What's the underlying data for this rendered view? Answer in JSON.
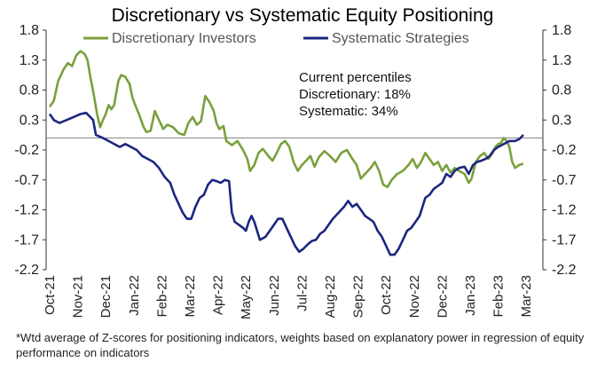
{
  "chart_data": {
    "type": "line",
    "title": "Discretionary  vs Systematic Equity Positioning",
    "xlabel": "",
    "ylabel": "",
    "ylim": [
      -2.2,
      1.8
    ],
    "yticks": [
      "1.8",
      "1.3",
      "0.8",
      "0.3",
      "-0.2",
      "-0.7",
      "-1.2",
      "-1.7",
      "-2.2"
    ],
    "xticks": [
      "Oct-21",
      "Nov-21",
      "Dec-21",
      "Jan-22",
      "Feb-22",
      "Mar-22",
      "Apr-22",
      "May-22",
      "Jun-22",
      "Jul-22",
      "Aug-22",
      "Sep-22",
      "Oct-22",
      "Nov-22",
      "Dec-22",
      "Jan-23",
      "Feb-23",
      "Mar-23"
    ],
    "zero_line": 0,
    "grid": false,
    "legend_position": "top-left",
    "series": [
      {
        "name": "Discretionary Investors",
        "color": "#7aa03c",
        "points": [
          [
            0.0,
            0.52
          ],
          [
            0.15,
            0.62
          ],
          [
            0.3,
            0.95
          ],
          [
            0.5,
            1.15
          ],
          [
            0.65,
            1.25
          ],
          [
            0.8,
            1.2
          ],
          [
            0.95,
            1.38
          ],
          [
            1.1,
            1.45
          ],
          [
            1.25,
            1.4
          ],
          [
            1.35,
            1.3
          ],
          [
            1.45,
            1.02
          ],
          [
            1.55,
            0.78
          ],
          [
            1.7,
            0.38
          ],
          [
            1.8,
            0.18
          ],
          [
            1.9,
            0.3
          ],
          [
            2.0,
            0.4
          ],
          [
            2.1,
            0.55
          ],
          [
            2.2,
            0.48
          ],
          [
            2.3,
            0.55
          ],
          [
            2.45,
            0.95
          ],
          [
            2.55,
            1.05
          ],
          [
            2.7,
            1.02
          ],
          [
            2.85,
            0.9
          ],
          [
            2.95,
            0.68
          ],
          [
            3.05,
            0.55
          ],
          [
            3.2,
            0.38
          ],
          [
            3.35,
            0.18
          ],
          [
            3.45,
            0.1
          ],
          [
            3.6,
            0.12
          ],
          [
            3.75,
            0.45
          ],
          [
            3.9,
            0.3
          ],
          [
            4.05,
            0.15
          ],
          [
            4.2,
            0.22
          ],
          [
            4.4,
            0.18
          ],
          [
            4.6,
            0.08
          ],
          [
            4.8,
            0.05
          ],
          [
            4.95,
            0.25
          ],
          [
            5.1,
            0.35
          ],
          [
            5.25,
            0.22
          ],
          [
            5.4,
            0.28
          ],
          [
            5.55,
            0.7
          ],
          [
            5.7,
            0.6
          ],
          [
            5.85,
            0.45
          ],
          [
            5.95,
            0.25
          ],
          [
            6.05,
            0.15
          ],
          [
            6.2,
            0.2
          ],
          [
            6.3,
            -0.05
          ],
          [
            6.5,
            -0.12
          ],
          [
            6.7,
            -0.05
          ],
          [
            6.9,
            -0.2
          ],
          [
            7.05,
            -0.35
          ],
          [
            7.15,
            -0.55
          ],
          [
            7.3,
            -0.45
          ],
          [
            7.45,
            -0.25
          ],
          [
            7.6,
            -0.18
          ],
          [
            7.8,
            -0.3
          ],
          [
            7.95,
            -0.38
          ],
          [
            8.1,
            -0.25
          ],
          [
            8.25,
            -0.1
          ],
          [
            8.4,
            -0.05
          ],
          [
            8.55,
            -0.15
          ],
          [
            8.7,
            -0.4
          ],
          [
            8.85,
            -0.55
          ],
          [
            9.0,
            -0.45
          ],
          [
            9.15,
            -0.38
          ],
          [
            9.3,
            -0.3
          ],
          [
            9.45,
            -0.48
          ],
          [
            9.6,
            -0.32
          ],
          [
            9.8,
            -0.22
          ],
          [
            10.0,
            -0.3
          ],
          [
            10.2,
            -0.4
          ],
          [
            10.4,
            -0.25
          ],
          [
            10.6,
            -0.2
          ],
          [
            10.8,
            -0.35
          ],
          [
            10.95,
            -0.45
          ],
          [
            11.1,
            -0.68
          ],
          [
            11.25,
            -0.6
          ],
          [
            11.45,
            -0.5
          ],
          [
            11.6,
            -0.4
          ],
          [
            11.75,
            -0.55
          ],
          [
            11.9,
            -0.78
          ],
          [
            12.05,
            -0.82
          ],
          [
            12.2,
            -0.7
          ],
          [
            12.4,
            -0.6
          ],
          [
            12.6,
            -0.55
          ],
          [
            12.8,
            -0.45
          ],
          [
            12.95,
            -0.35
          ],
          [
            13.1,
            -0.5
          ],
          [
            13.25,
            -0.4
          ],
          [
            13.4,
            -0.25
          ],
          [
            13.55,
            -0.35
          ],
          [
            13.7,
            -0.45
          ],
          [
            13.85,
            -0.4
          ],
          [
            14.0,
            -0.55
          ],
          [
            14.15,
            -0.45
          ],
          [
            14.3,
            -0.58
          ],
          [
            14.45,
            -0.5
          ],
          [
            14.6,
            -0.55
          ],
          [
            14.8,
            -0.6
          ],
          [
            14.95,
            -0.75
          ],
          [
            15.05,
            -0.68
          ],
          [
            15.2,
            -0.4
          ],
          [
            15.35,
            -0.3
          ],
          [
            15.5,
            -0.25
          ],
          [
            15.65,
            -0.35
          ],
          [
            15.8,
            -0.25
          ],
          [
            15.9,
            -0.15
          ],
          [
            16.0,
            -0.1
          ],
          [
            16.1,
            -0.08
          ],
          [
            16.2,
            0.0
          ],
          [
            16.3,
            -0.05
          ],
          [
            16.4,
            -0.15
          ],
          [
            16.5,
            -0.4
          ],
          [
            16.6,
            -0.5
          ],
          [
            16.75,
            -0.45
          ],
          [
            16.9,
            -0.43
          ]
        ]
      },
      {
        "name": "Systematic Strategies",
        "color": "#1c2680",
        "points": [
          [
            0.0,
            0.4
          ],
          [
            0.15,
            0.3
          ],
          [
            0.35,
            0.25
          ],
          [
            0.6,
            0.3
          ],
          [
            0.85,
            0.35
          ],
          [
            1.1,
            0.4
          ],
          [
            1.3,
            0.42
          ],
          [
            1.45,
            0.35
          ],
          [
            1.55,
            0.3
          ],
          [
            1.65,
            0.05
          ],
          [
            1.9,
            0.0
          ],
          [
            2.1,
            -0.05
          ],
          [
            2.3,
            -0.1
          ],
          [
            2.5,
            -0.15
          ],
          [
            2.7,
            -0.1
          ],
          [
            2.9,
            -0.15
          ],
          [
            3.1,
            -0.2
          ],
          [
            3.3,
            -0.3
          ],
          [
            3.5,
            -0.35
          ],
          [
            3.7,
            -0.4
          ],
          [
            3.9,
            -0.5
          ],
          [
            4.1,
            -0.65
          ],
          [
            4.3,
            -0.75
          ],
          [
            4.45,
            -0.95
          ],
          [
            4.6,
            -1.1
          ],
          [
            4.75,
            -1.25
          ],
          [
            4.9,
            -1.35
          ],
          [
            5.05,
            -1.35
          ],
          [
            5.2,
            -1.15
          ],
          [
            5.35,
            -1.0
          ],
          [
            5.5,
            -0.95
          ],
          [
            5.65,
            -0.78
          ],
          [
            5.8,
            -0.7
          ],
          [
            5.95,
            -0.72
          ],
          [
            6.1,
            -0.75
          ],
          [
            6.25,
            -0.7
          ],
          [
            6.4,
            -0.72
          ],
          [
            6.5,
            -1.25
          ],
          [
            6.6,
            -1.4
          ],
          [
            6.75,
            -1.45
          ],
          [
            6.9,
            -1.5
          ],
          [
            7.0,
            -1.55
          ],
          [
            7.1,
            -1.4
          ],
          [
            7.2,
            -1.3
          ],
          [
            7.3,
            -1.4
          ],
          [
            7.4,
            -1.55
          ],
          [
            7.5,
            -1.7
          ],
          [
            7.7,
            -1.65
          ],
          [
            7.85,
            -1.55
          ],
          [
            8.0,
            -1.45
          ],
          [
            8.15,
            -1.35
          ],
          [
            8.3,
            -1.35
          ],
          [
            8.45,
            -1.5
          ],
          [
            8.6,
            -1.65
          ],
          [
            8.75,
            -1.8
          ],
          [
            8.9,
            -1.9
          ],
          [
            9.05,
            -1.85
          ],
          [
            9.2,
            -1.78
          ],
          [
            9.35,
            -1.72
          ],
          [
            9.5,
            -1.7
          ],
          [
            9.65,
            -1.6
          ],
          [
            9.8,
            -1.55
          ],
          [
            9.95,
            -1.45
          ],
          [
            10.1,
            -1.35
          ],
          [
            10.3,
            -1.25
          ],
          [
            10.5,
            -1.15
          ],
          [
            10.65,
            -1.05
          ],
          [
            10.8,
            -1.15
          ],
          [
            10.95,
            -1.1
          ],
          [
            11.1,
            -1.2
          ],
          [
            11.25,
            -1.3
          ],
          [
            11.4,
            -1.35
          ],
          [
            11.55,
            -1.4
          ],
          [
            11.7,
            -1.55
          ],
          [
            11.85,
            -1.65
          ],
          [
            12.0,
            -1.8
          ],
          [
            12.15,
            -1.95
          ],
          [
            12.3,
            -1.95
          ],
          [
            12.45,
            -1.85
          ],
          [
            12.6,
            -1.7
          ],
          [
            12.75,
            -1.55
          ],
          [
            12.9,
            -1.5
          ],
          [
            13.05,
            -1.4
          ],
          [
            13.2,
            -1.3
          ],
          [
            13.4,
            -1.0
          ],
          [
            13.55,
            -0.95
          ],
          [
            13.7,
            -0.85
          ],
          [
            13.85,
            -0.8
          ],
          [
            14.0,
            -0.75
          ],
          [
            14.15,
            -0.6
          ],
          [
            14.3,
            -0.65
          ],
          [
            14.45,
            -0.55
          ],
          [
            14.6,
            -0.5
          ],
          [
            14.8,
            -0.48
          ],
          [
            14.95,
            -0.6
          ],
          [
            15.1,
            -0.45
          ],
          [
            15.25,
            -0.4
          ],
          [
            15.4,
            -0.38
          ],
          [
            15.55,
            -0.35
          ],
          [
            15.7,
            -0.3
          ],
          [
            15.85,
            -0.2
          ],
          [
            16.0,
            -0.15
          ],
          [
            16.2,
            -0.1
          ],
          [
            16.4,
            -0.05
          ],
          [
            16.6,
            -0.05
          ],
          [
            16.75,
            -0.02
          ],
          [
            16.9,
            0.05
          ]
        ]
      }
    ],
    "annotation": {
      "heading": "Current percentiles",
      "line1": "Discretionary: 18%",
      "line2": "Systematic: 34%"
    }
  },
  "footnote": "*Wtd average of Z-scores for positioning indicators, weights based on explanatory power in regression of equity performance on indicators"
}
